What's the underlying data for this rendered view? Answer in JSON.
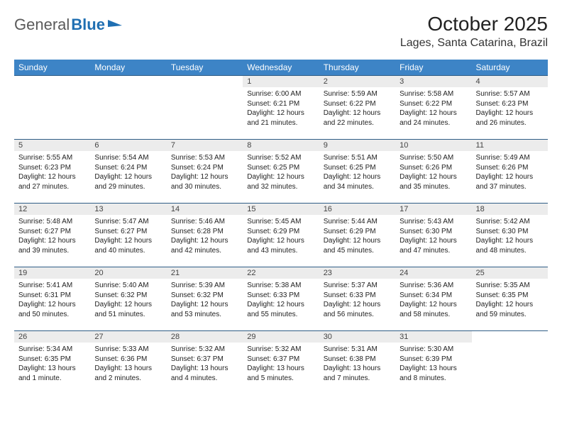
{
  "logo": {
    "text_gray": "General",
    "text_blue": "Blue"
  },
  "title": "October 2025",
  "location": "Lages, Santa Catarina, Brazil",
  "colors": {
    "header_bg": "#3d84c6",
    "header_text": "#ffffff",
    "cell_border": "#2f5d86",
    "daynum_bg": "#ececec",
    "logo_blue": "#1f6fb2",
    "page_bg": "#ffffff"
  },
  "fonts": {
    "title_size": 28,
    "location_size": 16,
    "th_size": 12,
    "cell_size": 10
  },
  "columns": [
    "Sunday",
    "Monday",
    "Tuesday",
    "Wednesday",
    "Thursday",
    "Friday",
    "Saturday"
  ],
  "weeks": [
    [
      null,
      null,
      null,
      {
        "n": "1",
        "sr": "Sunrise: 6:00 AM",
        "ss": "Sunset: 6:21 PM",
        "dl": "Daylight: 12 hours and 21 minutes."
      },
      {
        "n": "2",
        "sr": "Sunrise: 5:59 AM",
        "ss": "Sunset: 6:22 PM",
        "dl": "Daylight: 12 hours and 22 minutes."
      },
      {
        "n": "3",
        "sr": "Sunrise: 5:58 AM",
        "ss": "Sunset: 6:22 PM",
        "dl": "Daylight: 12 hours and 24 minutes."
      },
      {
        "n": "4",
        "sr": "Sunrise: 5:57 AM",
        "ss": "Sunset: 6:23 PM",
        "dl": "Daylight: 12 hours and 26 minutes."
      }
    ],
    [
      {
        "n": "5",
        "sr": "Sunrise: 5:55 AM",
        "ss": "Sunset: 6:23 PM",
        "dl": "Daylight: 12 hours and 27 minutes."
      },
      {
        "n": "6",
        "sr": "Sunrise: 5:54 AM",
        "ss": "Sunset: 6:24 PM",
        "dl": "Daylight: 12 hours and 29 minutes."
      },
      {
        "n": "7",
        "sr": "Sunrise: 5:53 AM",
        "ss": "Sunset: 6:24 PM",
        "dl": "Daylight: 12 hours and 30 minutes."
      },
      {
        "n": "8",
        "sr": "Sunrise: 5:52 AM",
        "ss": "Sunset: 6:25 PM",
        "dl": "Daylight: 12 hours and 32 minutes."
      },
      {
        "n": "9",
        "sr": "Sunrise: 5:51 AM",
        "ss": "Sunset: 6:25 PM",
        "dl": "Daylight: 12 hours and 34 minutes."
      },
      {
        "n": "10",
        "sr": "Sunrise: 5:50 AM",
        "ss": "Sunset: 6:26 PM",
        "dl": "Daylight: 12 hours and 35 minutes."
      },
      {
        "n": "11",
        "sr": "Sunrise: 5:49 AM",
        "ss": "Sunset: 6:26 PM",
        "dl": "Daylight: 12 hours and 37 minutes."
      }
    ],
    [
      {
        "n": "12",
        "sr": "Sunrise: 5:48 AM",
        "ss": "Sunset: 6:27 PM",
        "dl": "Daylight: 12 hours and 39 minutes."
      },
      {
        "n": "13",
        "sr": "Sunrise: 5:47 AM",
        "ss": "Sunset: 6:27 PM",
        "dl": "Daylight: 12 hours and 40 minutes."
      },
      {
        "n": "14",
        "sr": "Sunrise: 5:46 AM",
        "ss": "Sunset: 6:28 PM",
        "dl": "Daylight: 12 hours and 42 minutes."
      },
      {
        "n": "15",
        "sr": "Sunrise: 5:45 AM",
        "ss": "Sunset: 6:29 PM",
        "dl": "Daylight: 12 hours and 43 minutes."
      },
      {
        "n": "16",
        "sr": "Sunrise: 5:44 AM",
        "ss": "Sunset: 6:29 PM",
        "dl": "Daylight: 12 hours and 45 minutes."
      },
      {
        "n": "17",
        "sr": "Sunrise: 5:43 AM",
        "ss": "Sunset: 6:30 PM",
        "dl": "Daylight: 12 hours and 47 minutes."
      },
      {
        "n": "18",
        "sr": "Sunrise: 5:42 AM",
        "ss": "Sunset: 6:30 PM",
        "dl": "Daylight: 12 hours and 48 minutes."
      }
    ],
    [
      {
        "n": "19",
        "sr": "Sunrise: 5:41 AM",
        "ss": "Sunset: 6:31 PM",
        "dl": "Daylight: 12 hours and 50 minutes."
      },
      {
        "n": "20",
        "sr": "Sunrise: 5:40 AM",
        "ss": "Sunset: 6:32 PM",
        "dl": "Daylight: 12 hours and 51 minutes."
      },
      {
        "n": "21",
        "sr": "Sunrise: 5:39 AM",
        "ss": "Sunset: 6:32 PM",
        "dl": "Daylight: 12 hours and 53 minutes."
      },
      {
        "n": "22",
        "sr": "Sunrise: 5:38 AM",
        "ss": "Sunset: 6:33 PM",
        "dl": "Daylight: 12 hours and 55 minutes."
      },
      {
        "n": "23",
        "sr": "Sunrise: 5:37 AM",
        "ss": "Sunset: 6:33 PM",
        "dl": "Daylight: 12 hours and 56 minutes."
      },
      {
        "n": "24",
        "sr": "Sunrise: 5:36 AM",
        "ss": "Sunset: 6:34 PM",
        "dl": "Daylight: 12 hours and 58 minutes."
      },
      {
        "n": "25",
        "sr": "Sunrise: 5:35 AM",
        "ss": "Sunset: 6:35 PM",
        "dl": "Daylight: 12 hours and 59 minutes."
      }
    ],
    [
      {
        "n": "26",
        "sr": "Sunrise: 5:34 AM",
        "ss": "Sunset: 6:35 PM",
        "dl": "Daylight: 13 hours and 1 minute."
      },
      {
        "n": "27",
        "sr": "Sunrise: 5:33 AM",
        "ss": "Sunset: 6:36 PM",
        "dl": "Daylight: 13 hours and 2 minutes."
      },
      {
        "n": "28",
        "sr": "Sunrise: 5:32 AM",
        "ss": "Sunset: 6:37 PM",
        "dl": "Daylight: 13 hours and 4 minutes."
      },
      {
        "n": "29",
        "sr": "Sunrise: 5:32 AM",
        "ss": "Sunset: 6:37 PM",
        "dl": "Daylight: 13 hours and 5 minutes."
      },
      {
        "n": "30",
        "sr": "Sunrise: 5:31 AM",
        "ss": "Sunset: 6:38 PM",
        "dl": "Daylight: 13 hours and 7 minutes."
      },
      {
        "n": "31",
        "sr": "Sunrise: 5:30 AM",
        "ss": "Sunset: 6:39 PM",
        "dl": "Daylight: 13 hours and 8 minutes."
      },
      null
    ]
  ]
}
